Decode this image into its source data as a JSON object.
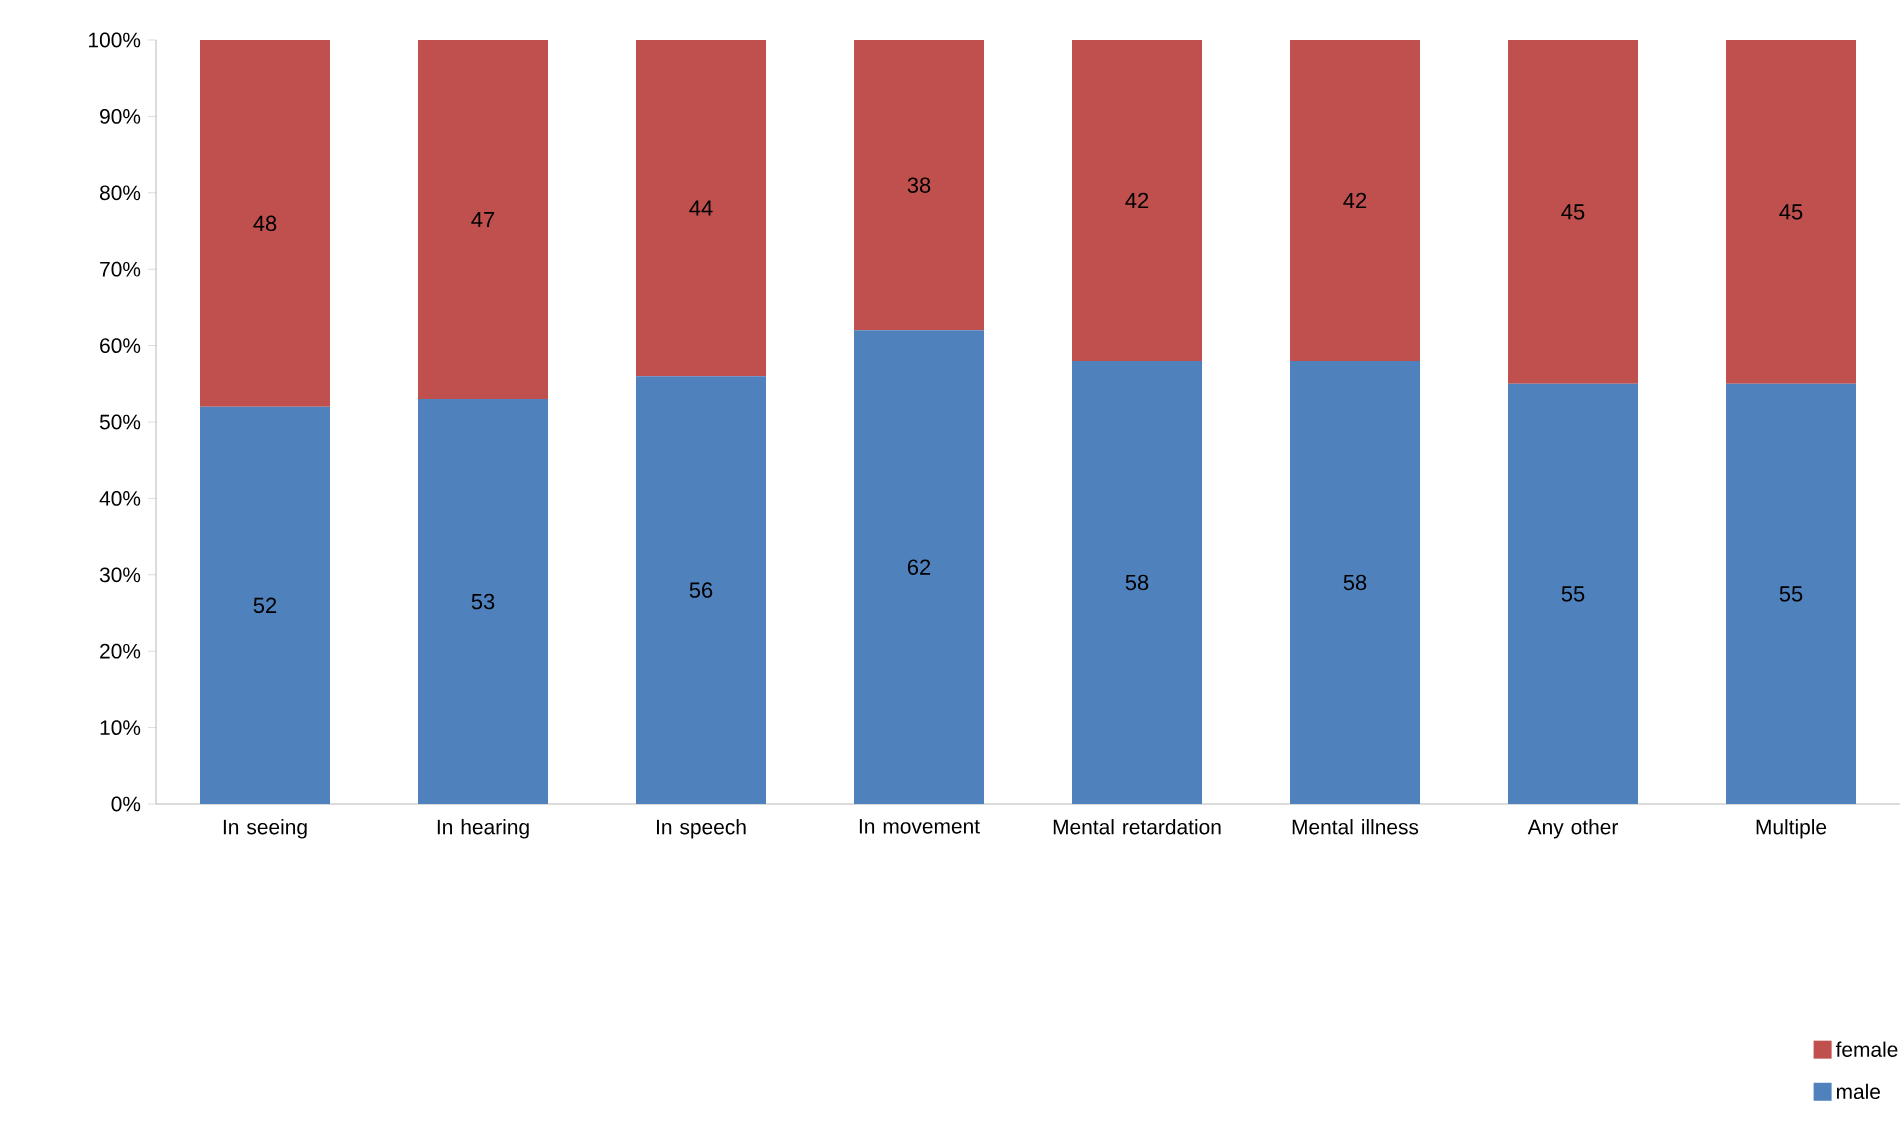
{
  "chart_data": {
    "type": "bar",
    "stacked": true,
    "categories": [
      "In seeing",
      "In hearing",
      "In speech",
      "In movement",
      "Mental retardation",
      "Mental illness",
      "Any other",
      "Multiple"
    ],
    "series": [
      {
        "name": "male",
        "color": "#4f81bd",
        "values": [
          52,
          53,
          56,
          62,
          58,
          58,
          55,
          55
        ]
      },
      {
        "name": "female",
        "color": "#c0504d",
        "values": [
          48,
          47,
          44,
          38,
          42,
          42,
          45,
          45
        ]
      }
    ],
    "ylim": [
      0,
      100
    ],
    "yticks": [
      {
        "value": 0,
        "label": "0%"
      },
      {
        "value": 10,
        "label": "10%"
      },
      {
        "value": 20,
        "label": "20%"
      },
      {
        "value": 30,
        "label": "30%"
      },
      {
        "value": 40,
        "label": "40%"
      },
      {
        "value": 50,
        "label": "50%"
      },
      {
        "value": 60,
        "label": "60%"
      },
      {
        "value": 70,
        "label": "70%"
      },
      {
        "value": 80,
        "label": "80%"
      },
      {
        "value": 90,
        "label": "90%"
      },
      {
        "value": 100,
        "label": "100%"
      }
    ],
    "data_labels": true,
    "legend": "bottom right"
  }
}
